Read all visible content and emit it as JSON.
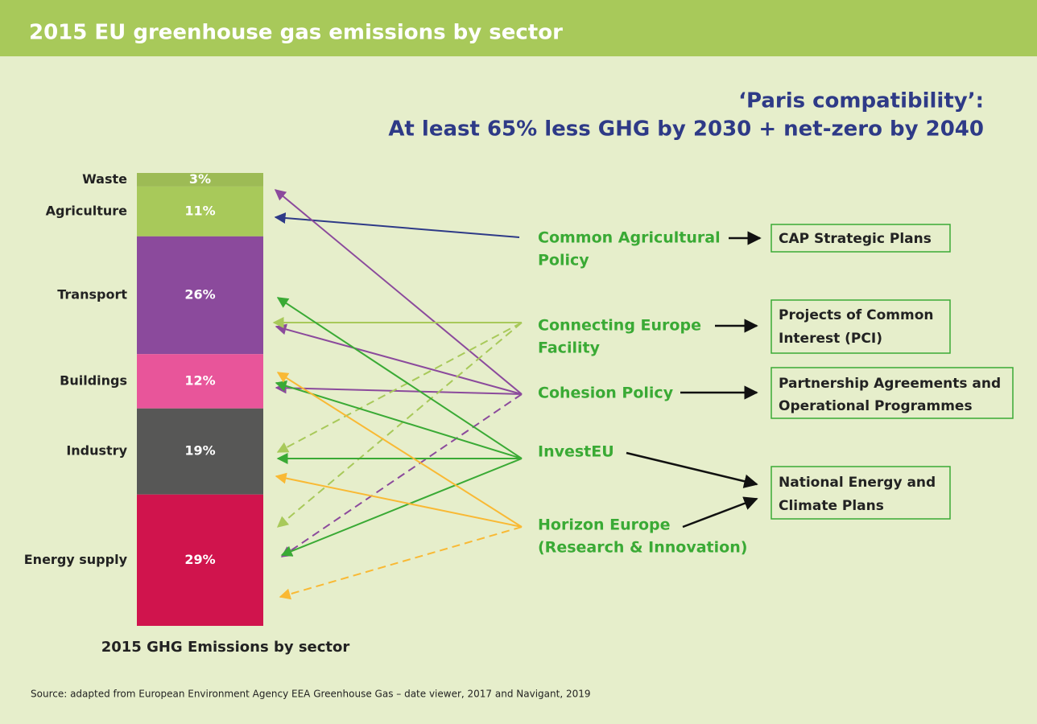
{
  "header": {
    "title": "2015 EU greenhouse gas emissions by sector"
  },
  "subtitle": {
    "lines": [
      "‘Paris compatibility’:",
      "At least 65% less GHG by 2030 + net-zero by 2040"
    ]
  },
  "sectors": [
    {
      "name": "Waste",
      "value": 3,
      "label": "3%",
      "color": "#9dbb55"
    },
    {
      "name": "Agriculture",
      "value": 11,
      "label": "11%",
      "color": "#a8c95a"
    },
    {
      "name": "Transport",
      "value": 26,
      "label": "26%",
      "color": "#8b4a9c"
    },
    {
      "name": "Buildings",
      "value": 12,
      "label": "12%",
      "color": "#e8559a"
    },
    {
      "name": "Industry",
      "value": 19,
      "label": "19%",
      "color": "#575756"
    },
    {
      "name": "Energy supply",
      "value": 29,
      "label": "29%",
      "color": "#d0144d"
    }
  ],
  "caption": "2015 GHG Emissions by sector",
  "policies": [
    {
      "lines": [
        "Common Agricultural",
        "Policy"
      ]
    },
    {
      "lines": [
        "Connecting Europe",
        "Facility"
      ]
    },
    {
      "lines": [
        "Cohesion Policy"
      ]
    },
    {
      "lines": [
        "InvestEU"
      ]
    },
    {
      "lines": [
        "Horizon Europe",
        "(Research & Innovation)"
      ]
    }
  ],
  "boxes": [
    {
      "lines": [
        "CAP Strategic Plans"
      ]
    },
    {
      "lines": [
        "Projects of Common",
        "Interest (PCI)"
      ]
    },
    {
      "lines": [
        "Partnership Agreements and",
        "Operational Programmes"
      ]
    },
    {
      "lines": [
        "National Energy and",
        "Climate Plans"
      ]
    }
  ],
  "source": "Source: adapted from European Environment Agency EEA Greenhouse Gas – date viewer, 2017 and Navigant, 2019"
}
